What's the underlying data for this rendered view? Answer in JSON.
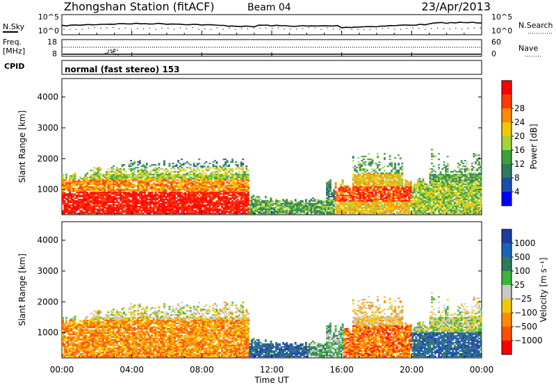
{
  "header": {
    "station": "Zhongshan Station (fitACF)",
    "beam": "Beam 04",
    "date": "23/Apr/2013"
  },
  "status_panels": {
    "nsky_label": "N.Sky",
    "nsearch_label": "N.Search",
    "nsky_ticks": [
      "10^5",
      "10^0"
    ],
    "nsearch_ticks": [
      "10^5",
      "10^0"
    ],
    "freq_label_line1": "Freq.",
    "freq_label_line2": "[MHz]",
    "freq_ticks": [
      "18",
      "8"
    ],
    "nave_label": "Nave",
    "nave_ticks": [
      "60",
      "0"
    ],
    "cpid_label": "CPID",
    "cpid_text": "normal (fast stereo) 153"
  },
  "colors": {
    "power": [
      "#0000ff",
      "#1a4fa8",
      "#2e7a5a",
      "#3ca03c",
      "#a6d23c",
      "#f0c800",
      "#ff8c00",
      "#ff3c00",
      "#ff0000"
    ],
    "velocity": [
      "#1e3ca0",
      "#1e64b4",
      "#2e7a5a",
      "#3cb43c",
      "#c8c8c8",
      "#f0c800",
      "#ff8c00",
      "#ff5000",
      "#ff0000"
    ]
  },
  "chart_data": [
    {
      "type": "heatmap",
      "name": "power",
      "ylabel": "Slant Range [km]",
      "ylim": [
        180,
        4600
      ],
      "yticks": [
        "1000",
        "2000",
        "3000",
        "4000"
      ],
      "xlim": [
        "00:00",
        "24:00"
      ],
      "colorbar_label": "Power [dB]",
      "colorbar_ticks": [
        "4",
        "8",
        "12",
        "16",
        "20",
        "24",
        "28"
      ]
    },
    {
      "type": "heatmap",
      "name": "velocity",
      "ylabel": "Slant Range [km]",
      "ylim": [
        180,
        4600
      ],
      "yticks": [
        "1000",
        "2000",
        "3000",
        "4000"
      ],
      "xlim": [
        "00:00",
        "24:00"
      ],
      "colorbar_label": "Velocity [m s⁻¹]",
      "colorbar_ticks": [
        "1000",
        "500",
        "100",
        "25",
        "−25",
        "−100",
        "−500",
        "−1000"
      ]
    }
  ],
  "xaxis": {
    "ticks": [
      "00:00",
      "04:00",
      "08:00",
      "12:00",
      "16:00",
      "20:00",
      "00:00"
    ],
    "label": "Time UT"
  }
}
